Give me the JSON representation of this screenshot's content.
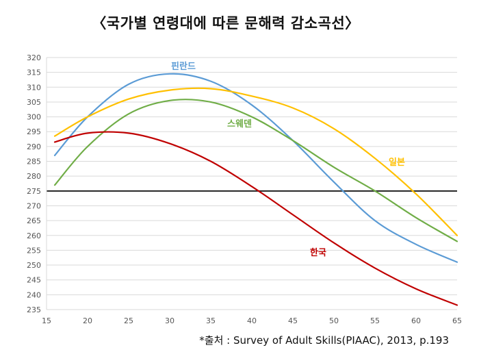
{
  "chart_data": {
    "type": "line",
    "title": "〈국가별 연령대에 따른 문해력 감소곡선〉",
    "source": "*출처 : Survey of Adult Skills(PIAAC), 2013, p.193",
    "xlabel": "",
    "ylabel": "",
    "xlim": [
      15,
      65
    ],
    "ylim": [
      235,
      320
    ],
    "x_ticks": [
      15,
      20,
      25,
      30,
      35,
      40,
      45,
      50,
      55,
      60,
      65
    ],
    "y_ticks": [
      235,
      240,
      245,
      250,
      255,
      260,
      265,
      270,
      275,
      280,
      285,
      290,
      295,
      300,
      305,
      310,
      315,
      320
    ],
    "grid": true,
    "reference_line": 275,
    "series": [
      {
        "name": "핀란드",
        "color": "#5b9bd5",
        "x": [
          16,
          20,
          25,
          30,
          35,
          40,
          45,
          50,
          55,
          60,
          65
        ],
        "y": [
          287,
          300,
          311,
          314.5,
          312,
          304,
          292,
          278,
          265,
          257,
          251
        ]
      },
      {
        "name": "일본",
        "color": "#ffc000",
        "x": [
          16,
          20,
          25,
          30,
          35,
          40,
          45,
          50,
          55,
          60,
          65
        ],
        "y": [
          293.5,
          300,
          306,
          309,
          309.5,
          307,
          303,
          296,
          286,
          274,
          260
        ]
      },
      {
        "name": "스웨덴",
        "color": "#70ad47",
        "x": [
          16,
          20,
          25,
          30,
          35,
          40,
          45,
          50,
          55,
          60,
          65
        ],
        "y": [
          277,
          290,
          301,
          305.5,
          305,
          300,
          292,
          283,
          275,
          266,
          258
        ]
      },
      {
        "name": "한국",
        "color": "#c00000",
        "x": [
          16,
          20,
          25,
          30,
          35,
          40,
          45,
          50,
          55,
          60,
          65
        ],
        "y": [
          291.5,
          294.5,
          294.5,
          291,
          285,
          276.5,
          267,
          257.5,
          249,
          242,
          236.5
        ]
      }
    ]
  }
}
